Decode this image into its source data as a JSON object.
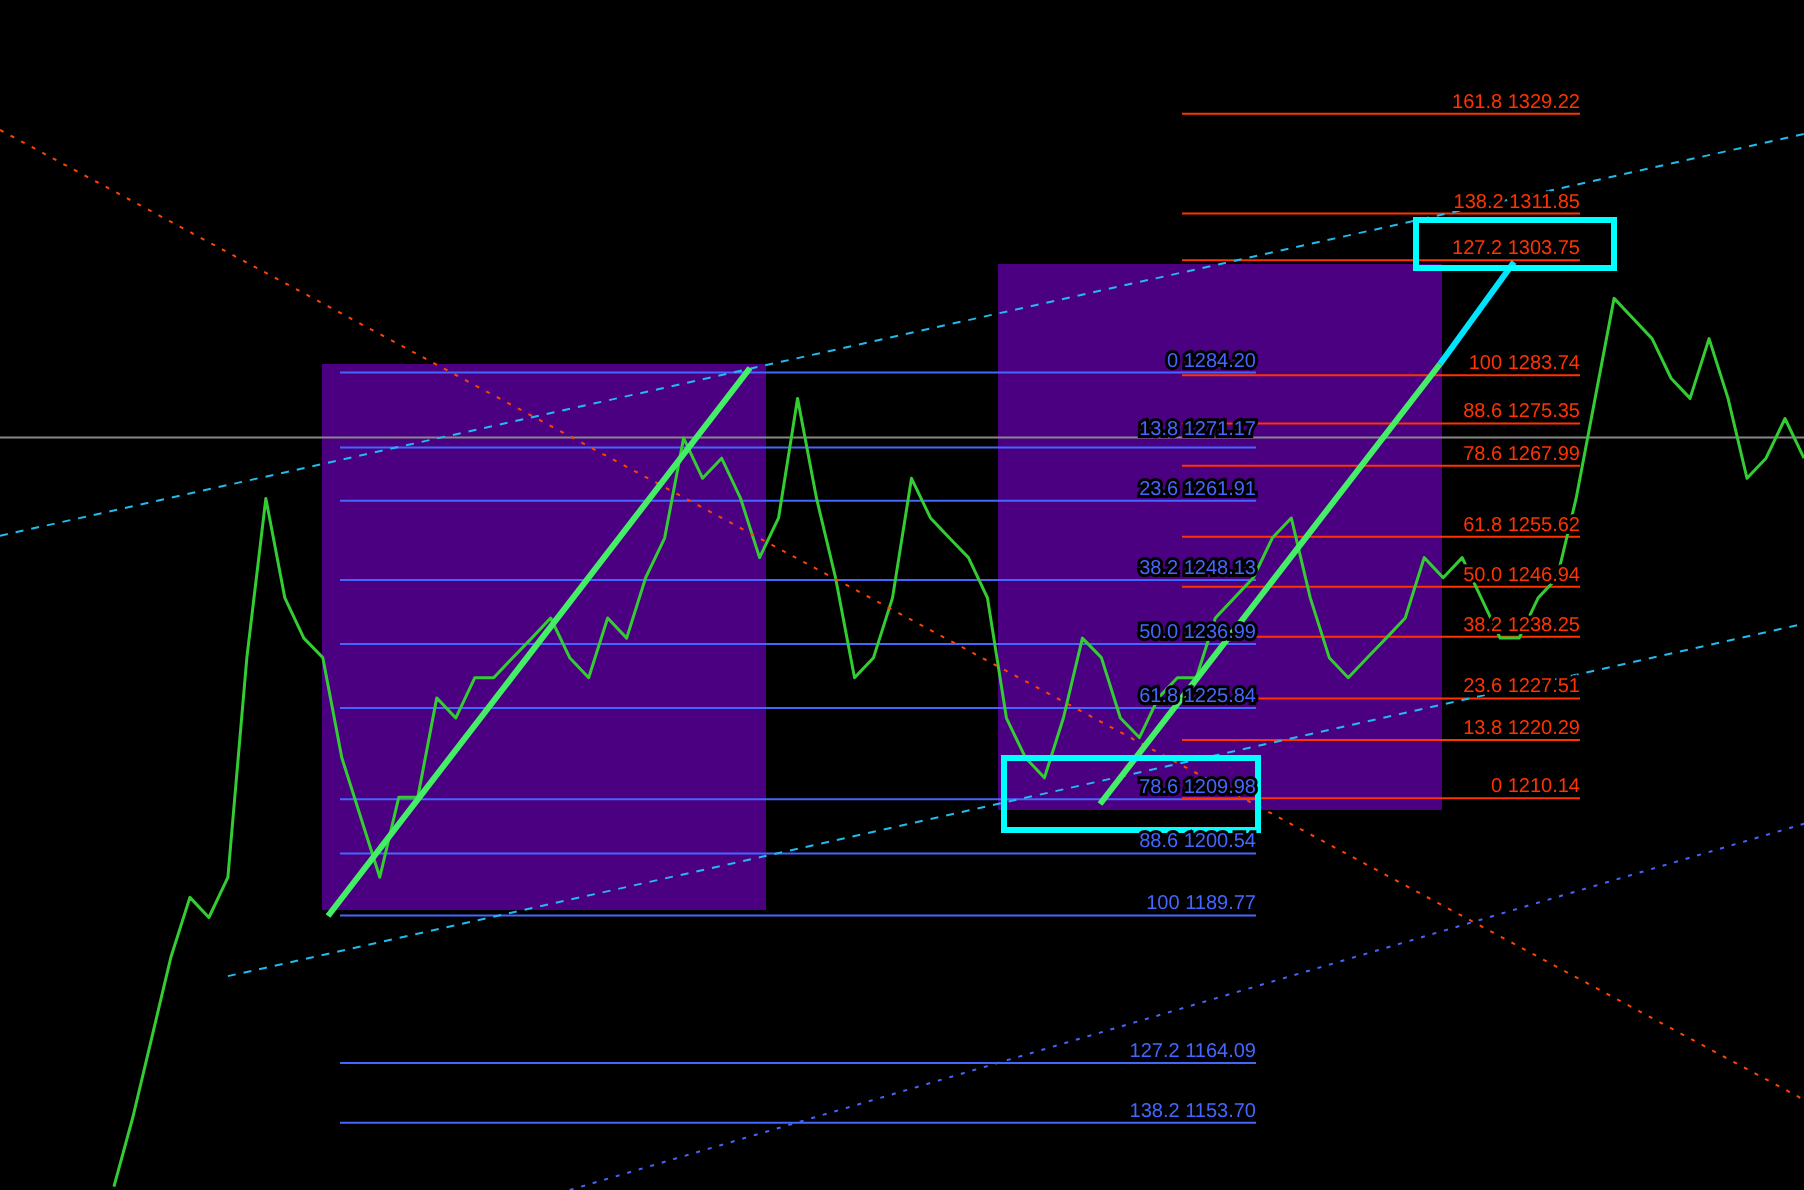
{
  "chart_data": {
    "type": "line",
    "categories": [
      null,
      null,
      null,
      null,
      null,
      null,
      null,
      null,
      null,
      null,
      null,
      null,
      null,
      null,
      null,
      null,
      null,
      null,
      null,
      null,
      null,
      null,
      null,
      null,
      null,
      null,
      null,
      null,
      null,
      null,
      null,
      null,
      null,
      null,
      null,
      null,
      null,
      null,
      null,
      null,
      null,
      null,
      null,
      null,
      null,
      null,
      null,
      null,
      null,
      null,
      null,
      null,
      null,
      null,
      null,
      null,
      null,
      null,
      null,
      null,
      null,
      null,
      null,
      null,
      null,
      null,
      null,
      null,
      null,
      null,
      null,
      null,
      null,
      null,
      null,
      null,
      null,
      null,
      null,
      null,
      null,
      null,
      null,
      null,
      null,
      null,
      null,
      null,
      null,
      null,
      null,
      null,
      null,
      null,
      null,
      null
    ],
    "series": [
      {
        "color": "#33cc33",
        "values": [
          null,
          null,
          null,
          null,
          null,
          null,
          1142.6,
          1154.7,
          1168.6,
          1182.5,
          1192.9,
          1189.4,
          1196.4,
          1234.6,
          1262.3,
          1245.0,
          1238.0,
          1234.6,
          1217.2,
          1206.8,
          1196.4,
          1210.3,
          1210.3,
          1227.6,
          1224.1,
          1231.1,
          1231.1,
          1234.6,
          1238.0,
          1241.5,
          1234.6,
          1231.1,
          1241.5,
          1238.0,
          1248.5,
          1255.4,
          1272.8,
          1265.8,
          1269.3,
          1262.3,
          1252.0,
          1258.9,
          1279.7,
          1262.3,
          1248.5,
          1231.1,
          1234.6,
          1245.0,
          1265.8,
          1258.9,
          1255.4,
          1252.0,
          1245.0,
          1224.1,
          1217.2,
          1213.7,
          1224.1,
          1238.0,
          1234.6,
          1224.1,
          1220.7,
          1227.6,
          1231.1,
          1231.1,
          1241.5,
          1245.0,
          1248.5,
          1255.4,
          1258.9,
          1245.0,
          1234.6,
          1231.1,
          1234.6,
          1238.0,
          1241.5,
          1252.0,
          1248.5,
          1252.0,
          1245.0,
          1238.0,
          1238.0,
          1245.0,
          1248.5,
          1262.3,
          1279.7,
          1297.1,
          1293.6,
          1290.1,
          1283.2,
          1279.7,
          1290.1,
          1279.7,
          1265.8,
          1269.3,
          1276.2,
          1269.3
        ]
      },
      {
        "color": "#22bbee",
        "line_style": "dashed",
        "values": [
          1255.8,
          null,
          null,
          null,
          null,
          null,
          null,
          null,
          null,
          null,
          null,
          null,
          null,
          null,
          null,
          null,
          null,
          null,
          null,
          null,
          null,
          null,
          null,
          null,
          null,
          null,
          null,
          null,
          null,
          null,
          null,
          null,
          null,
          null,
          null,
          null,
          null,
          null,
          null,
          null,
          null,
          null,
          null,
          null,
          null,
          null,
          null,
          null,
          null,
          null,
          null,
          null,
          null,
          null,
          null,
          null,
          null,
          null,
          null,
          null,
          null,
          null,
          null,
          null,
          null,
          null,
          null,
          null,
          null,
          null,
          null,
          null,
          null,
          null,
          null,
          null,
          null,
          null,
          null,
          null,
          null,
          null,
          null,
          null,
          null,
          null,
          null,
          null,
          null,
          null,
          null,
          null,
          null,
          null,
          null,
          1325.7
        ]
      },
      {
        "color": "#22bbee",
        "line_style": "dashed",
        "values": [
          null,
          null,
          null,
          null,
          null,
          null,
          null,
          null,
          null,
          null,
          null,
          null,
          1179.2,
          null,
          null,
          null,
          null,
          null,
          null,
          null,
          null,
          null,
          null,
          null,
          null,
          null,
          null,
          null,
          null,
          null,
          null,
          null,
          null,
          null,
          null,
          null,
          null,
          null,
          null,
          null,
          null,
          null,
          null,
          null,
          null,
          null,
          null,
          null,
          null,
          null,
          null,
          null,
          null,
          null,
          null,
          null,
          null,
          null,
          null,
          null,
          null,
          null,
          null,
          null,
          null,
          null,
          null,
          null,
          null,
          null,
          null,
          null,
          null,
          null,
          null,
          null,
          null,
          null,
          null,
          null,
          null,
          null,
          null,
          null,
          null,
          null,
          null,
          null,
          null,
          null,
          null,
          null,
          null,
          null,
          null,
          1240.5
        ]
      },
      {
        "color": "#4466ff",
        "line_style": "dotted",
        "values": [
          null,
          null,
          null,
          null,
          null,
          null,
          null,
          null,
          null,
          null,
          null,
          null,
          null,
          null,
          null,
          null,
          null,
          null,
          null,
          null,
          null,
          null,
          null,
          null,
          null,
          null,
          null,
          null,
          null,
          null,
          1142.0,
          null,
          null,
          null,
          null,
          null,
          null,
          null,
          null,
          null,
          null,
          null,
          null,
          null,
          null,
          null,
          null,
          null,
          null,
          null,
          null,
          null,
          null,
          null,
          null,
          null,
          null,
          null,
          null,
          null,
          null,
          null,
          null,
          null,
          null,
          null,
          null,
          null,
          null,
          null,
          null,
          null,
          null,
          null,
          null,
          null,
          null,
          null,
          null,
          null,
          null,
          null,
          null,
          null,
          null,
          null,
          null,
          null,
          null,
          null,
          null,
          null,
          null,
          null,
          null,
          1205.7
        ]
      },
      {
        "color": "#ff4400",
        "line_style": "dotted",
        "values": [
          1326.4,
          null,
          null,
          null,
          null,
          null,
          null,
          null,
          null,
          null,
          null,
          null,
          null,
          null,
          null,
          null,
          null,
          null,
          null,
          null,
          null,
          null,
          null,
          null,
          null,
          null,
          null,
          null,
          null,
          null,
          null,
          null,
          null,
          null,
          null,
          null,
          null,
          null,
          null,
          null,
          null,
          null,
          null,
          null,
          null,
          null,
          null,
          null,
          null,
          null,
          null,
          null,
          null,
          null,
          null,
          null,
          null,
          null,
          null,
          null,
          null,
          null,
          null,
          null,
          null,
          null,
          null,
          null,
          null,
          null,
          null,
          null,
          null,
          null,
          null,
          null,
          null,
          null,
          null,
          null,
          null,
          null,
          null,
          null,
          null,
          null,
          null,
          null,
          null,
          null,
          null,
          null,
          null,
          null,
          null,
          1157.7
        ]
      }
    ],
    "ylim": [
      1142,
      1349
    ],
    "ref_lines": [
      {
        "axis": "y",
        "value": 1284.2,
        "label": "0 1284.20",
        "color": "#4466ff"
      },
      {
        "axis": "y",
        "value": 1271.17,
        "label": "13.8 1271.17",
        "color": "#4466ff"
      },
      {
        "axis": "y",
        "value": 1261.91,
        "label": "23.6 1261.91",
        "color": "#4466ff"
      },
      {
        "axis": "y",
        "value": 1248.13,
        "label": "38.2 1248.13",
        "color": "#4466ff"
      },
      {
        "axis": "y",
        "value": 1236.99,
        "label": "50.0 1236.99",
        "color": "#4466ff"
      },
      {
        "axis": "y",
        "value": 1225.84,
        "label": "61.8 1225.84",
        "color": "#4466ff"
      },
      {
        "axis": "y",
        "value": 1209.98,
        "label": "78.6 1209.98",
        "color": "#4466ff"
      },
      {
        "axis": "y",
        "value": 1200.54,
        "label": "88.6 1200.54",
        "color": "#4466ff"
      },
      {
        "axis": "y",
        "value": 1189.77,
        "label": "100 1189.77",
        "color": "#4466ff"
      },
      {
        "axis": "y",
        "value": 1164.09,
        "label": "127.2 1164.09",
        "color": "#4466ff"
      },
      {
        "axis": "y",
        "value": 1153.7,
        "label": "138.2 1153.70",
        "color": "#4466ff"
      },
      {
        "axis": "y",
        "value": 1210.14,
        "label": "0 1210.14",
        "color": "#ff3300"
      },
      {
        "axis": "y",
        "value": 1220.29,
        "label": "13.8 1220.29",
        "color": "#ff3300"
      },
      {
        "axis": "y",
        "value": 1227.51,
        "label": "23.6 1227.51",
        "color": "#ff3300"
      },
      {
        "axis": "y",
        "value": 1238.25,
        "label": "38.2 1238.25",
        "color": "#ff3300"
      },
      {
        "axis": "y",
        "value": 1246.94,
        "label": "50.0 1246.94",
        "color": "#ff3300"
      },
      {
        "axis": "y",
        "value": 1255.62,
        "label": "61.8 1255.62",
        "color": "#ff3300"
      },
      {
        "axis": "y",
        "value": 1267.99,
        "label": "78.6 1267.99",
        "color": "#ff3300"
      },
      {
        "axis": "y",
        "value": 1275.35,
        "label": "88.6 1275.35",
        "color": "#ff3300"
      },
      {
        "axis": "y",
        "value": 1283.74,
        "label": "100 1283.74",
        "color": "#ff3300"
      },
      {
        "axis": "y",
        "value": 1303.75,
        "label": "127.2 1303.75",
        "color": "#ff3300"
      },
      {
        "axis": "y",
        "value": 1311.85,
        "label": "138.2 1311.85",
        "color": "#ff3300"
      },
      {
        "axis": "y",
        "value": 1329.22,
        "label": "161.8 1329.22",
        "color": "#ff3300"
      },
      {
        "axis": "y",
        "value": 1272.9,
        "color": "#888888"
      }
    ]
  }
}
